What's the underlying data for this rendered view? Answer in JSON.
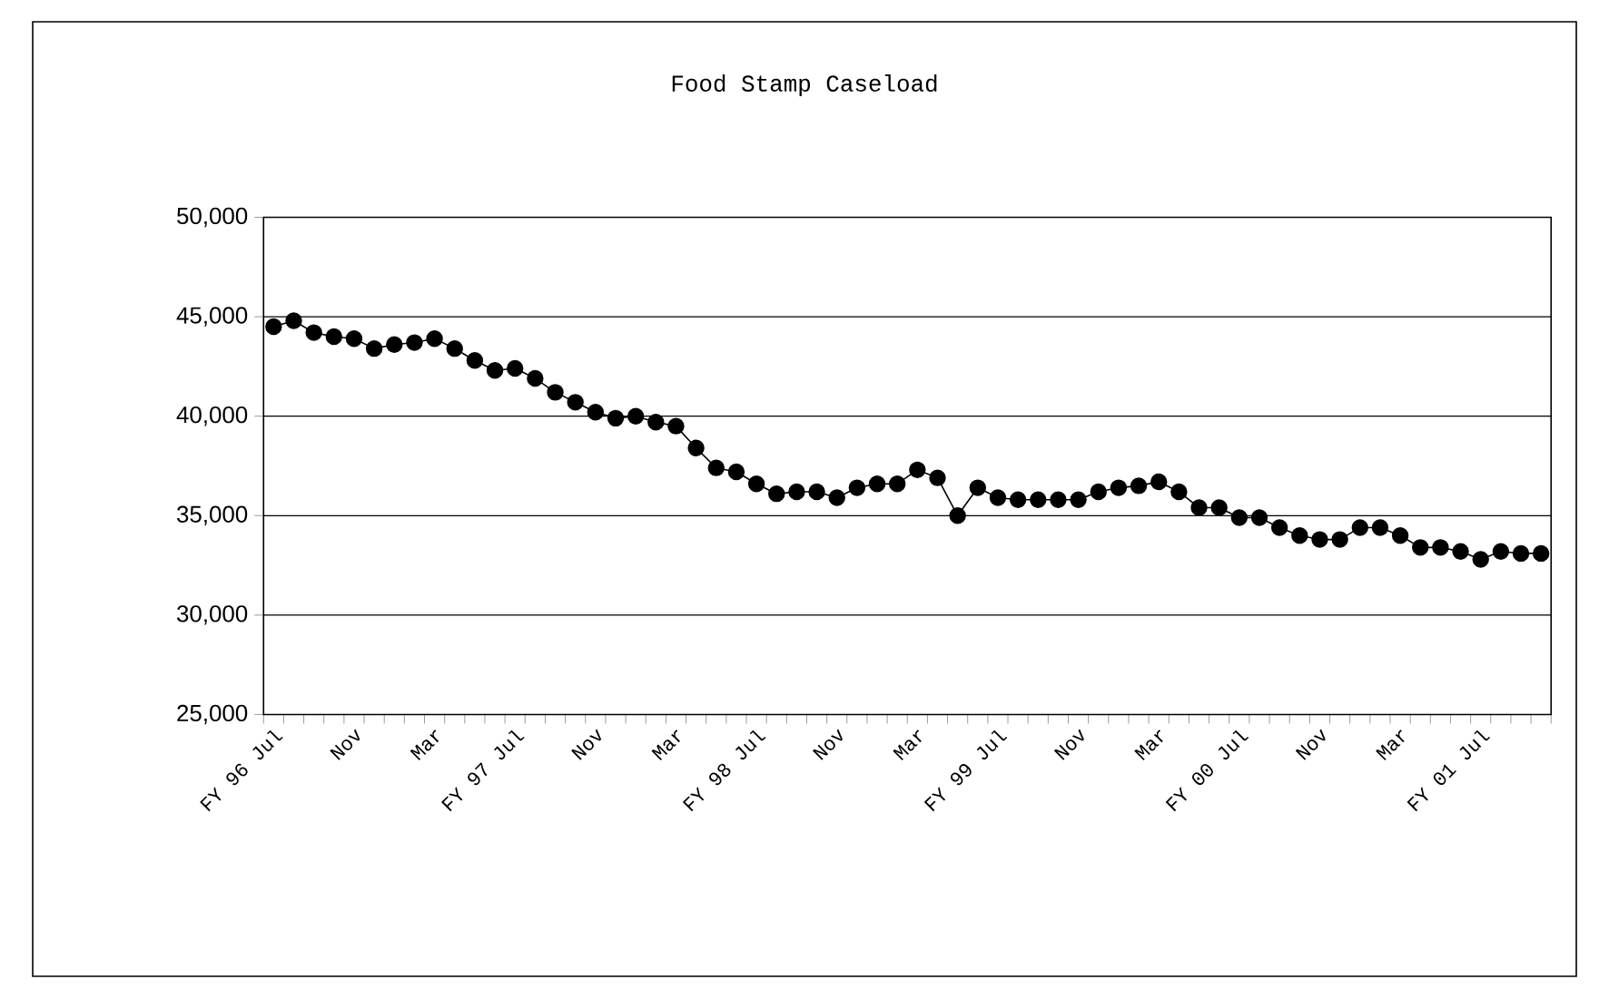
{
  "chart_data": {
    "type": "line",
    "title": "Food Stamp Caseload",
    "categories": [
      "FY 96  Jul",
      null,
      null,
      null,
      "Nov",
      null,
      null,
      null,
      "Mar",
      null,
      null,
      null,
      "FY 97  Jul",
      null,
      null,
      null,
      "Nov",
      null,
      null,
      null,
      "Mar",
      null,
      null,
      null,
      "FY 98  Jul",
      null,
      null,
      null,
      "Nov",
      null,
      null,
      null,
      "Mar",
      null,
      null,
      null,
      "FY 99  Jul",
      null,
      null,
      null,
      "Nov",
      null,
      null,
      null,
      "Mar",
      null,
      null,
      null,
      "FY 00  Jul",
      null,
      null,
      null,
      "Nov",
      null,
      null,
      null,
      "Mar",
      null,
      null,
      null,
      "FY 01  Jul",
      null,
      null,
      null
    ],
    "series": [
      {
        "color": "#000000",
        "values": [
          44500,
          44800,
          44200,
          44000,
          43900,
          43400,
          43600,
          43700,
          43900,
          43400,
          42800,
          42300,
          42400,
          41900,
          41200,
          40700,
          40200,
          39900,
          40000,
          39700,
          39500,
          38400,
          37400,
          37200,
          36600,
          36100,
          36200,
          36200,
          35900,
          36400,
          36600,
          36600,
          37300,
          36900,
          35000,
          36400,
          35900,
          35800,
          35800,
          35800,
          35800,
          36200,
          36400,
          36500,
          36700,
          36200,
          35400,
          35400,
          34900,
          34900,
          34400,
          34000,
          33800,
          33800,
          34400,
          34400,
          34000,
          33400,
          33400,
          33200,
          32800,
          33200,
          33100,
          33100
        ]
      }
    ],
    "ylim": [
      25000,
      50000
    ],
    "yticks": [
      {
        "value": 25000,
        "label": "25,000"
      },
      {
        "value": 30000,
        "label": "30,000"
      },
      {
        "value": 35000,
        "label": "35,000"
      },
      {
        "value": 40000,
        "label": "40,000"
      },
      {
        "value": 45000,
        "label": "45,000"
      },
      {
        "value": 50000,
        "label": "50,000"
      }
    ],
    "grid": "y",
    "marker": "circle",
    "line_style": "solid"
  }
}
